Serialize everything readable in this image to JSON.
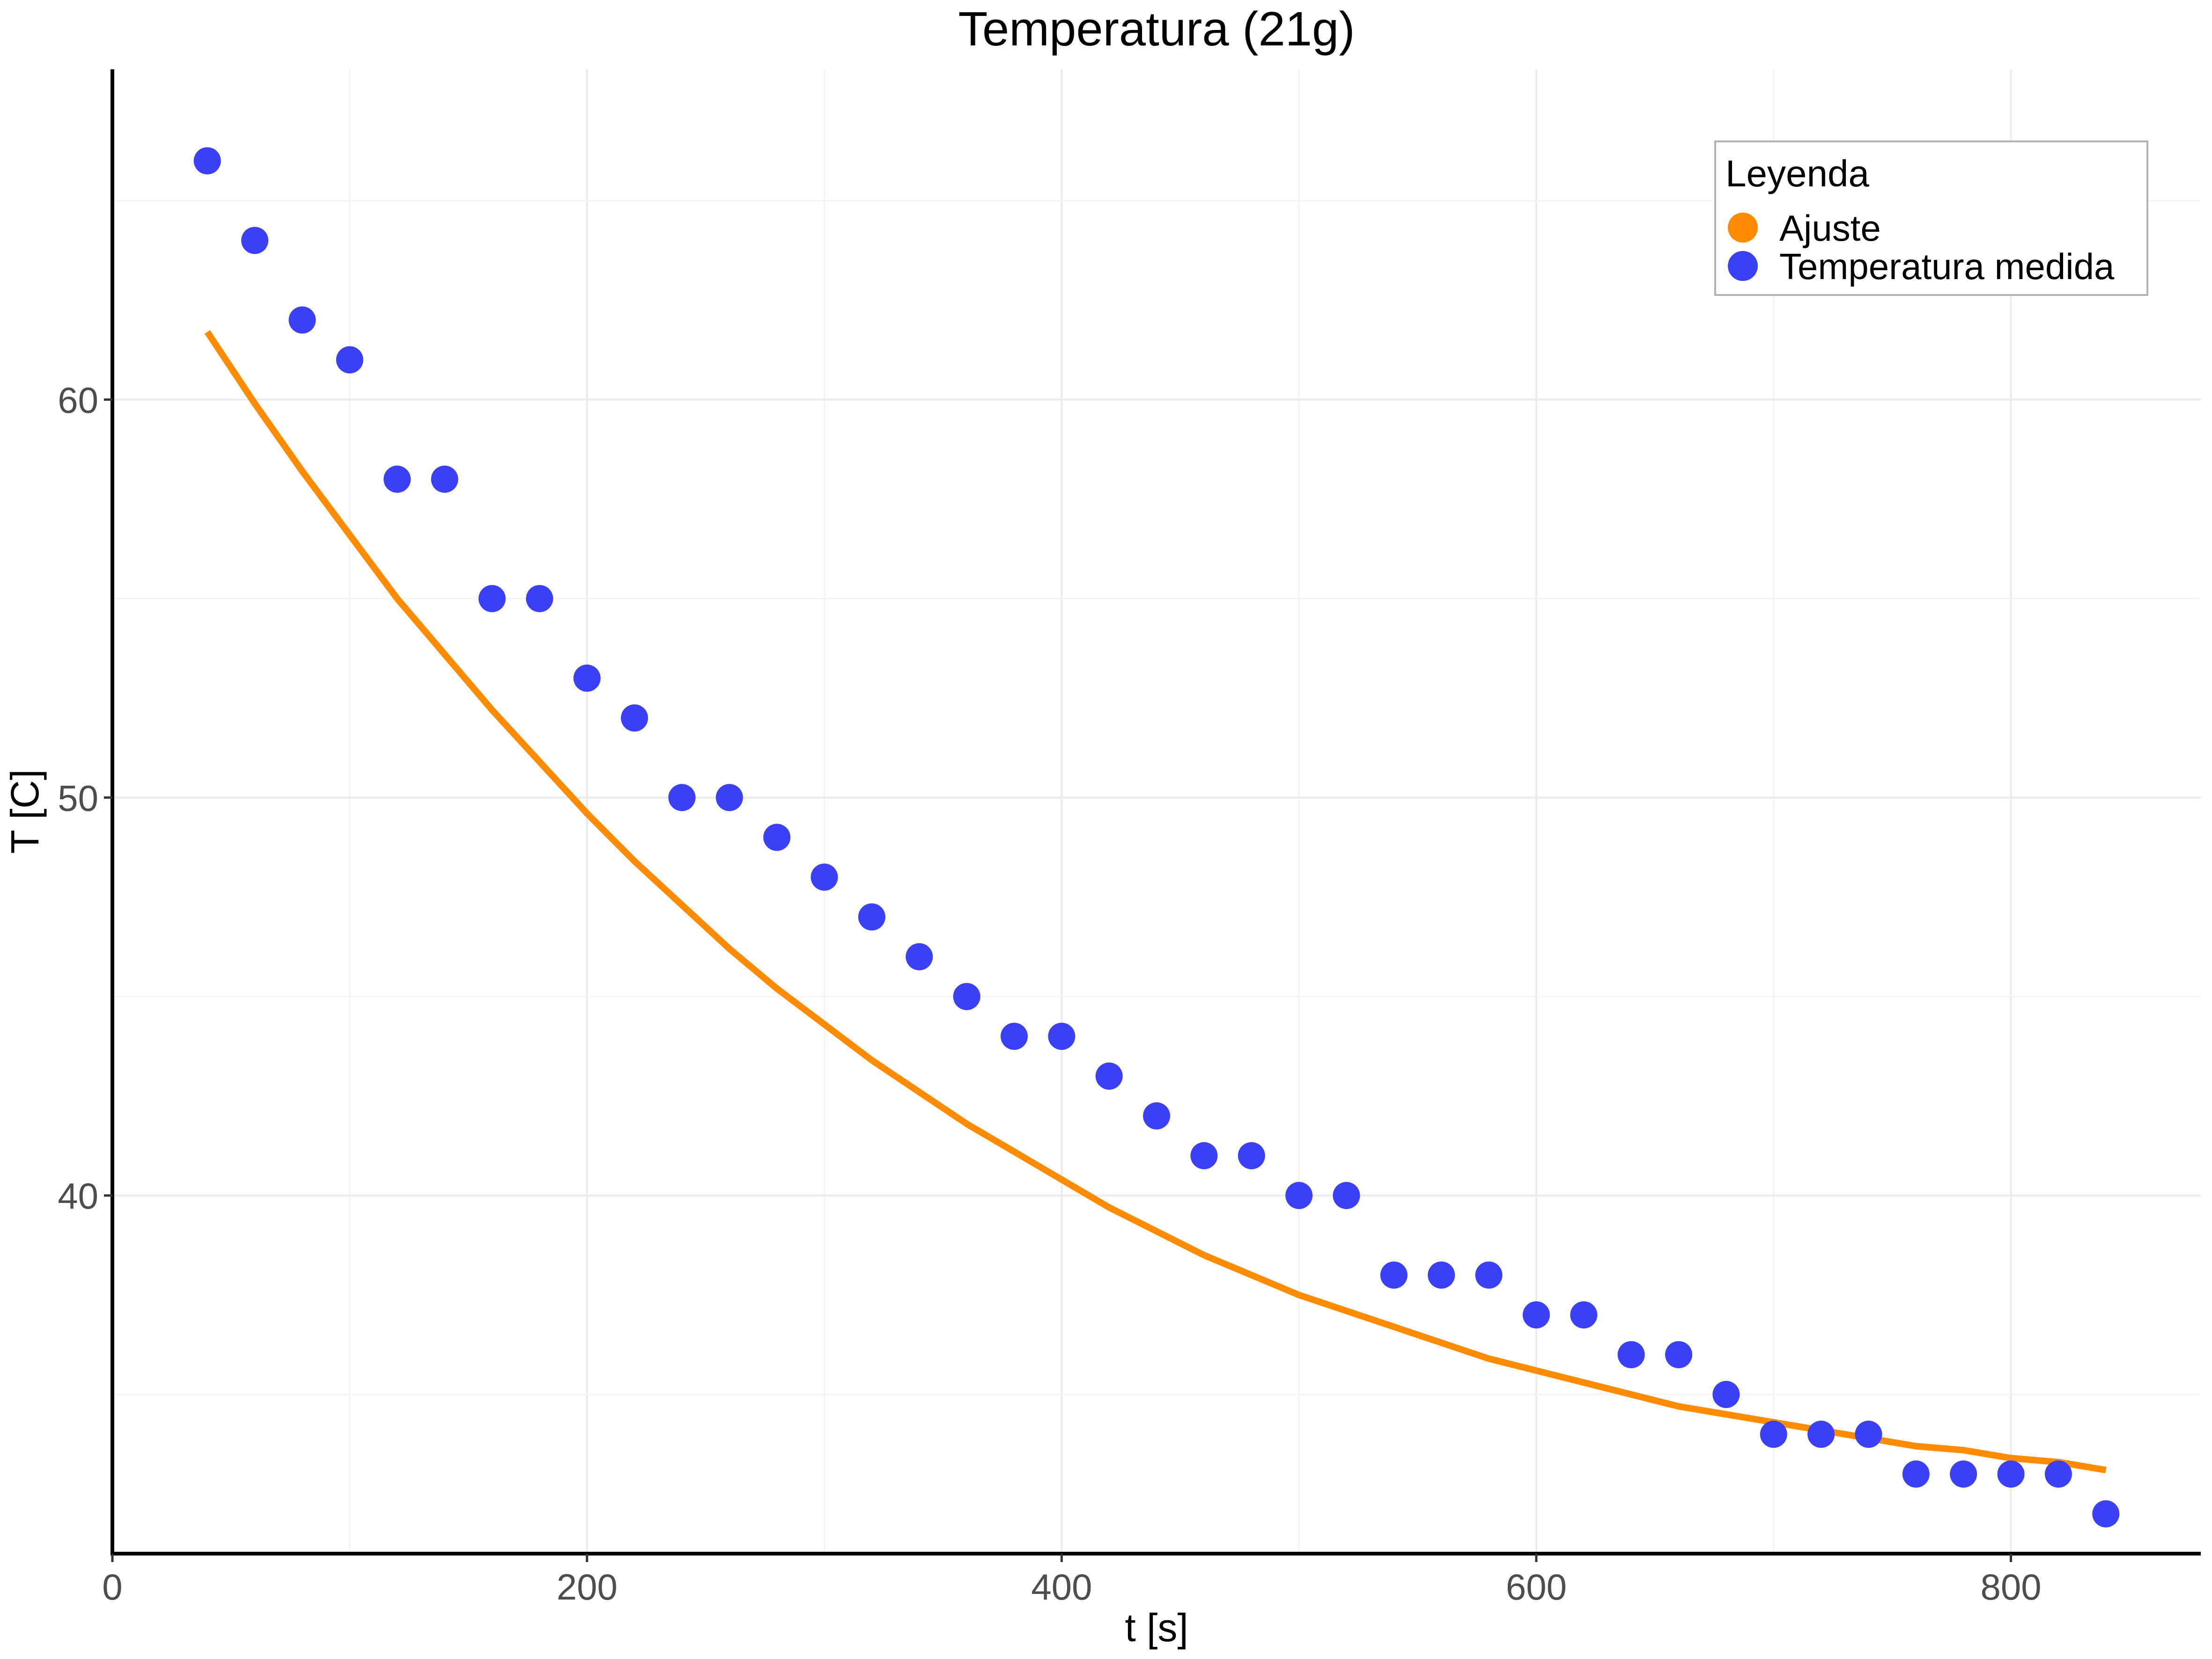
{
  "chart_data": {
    "type": "scatter",
    "title": "Temperatura (21g)",
    "xlabel": "t [s]",
    "ylabel": "T [C]",
    "xlim": [
      0,
      880
    ],
    "ylim": [
      31,
      68.3
    ],
    "x_ticks": [
      0,
      200,
      400,
      600,
      800
    ],
    "y_ticks": [
      40,
      50,
      60
    ],
    "grid": true,
    "legend": {
      "title": "Leyenda",
      "position": "top-right",
      "entries": [
        {
          "label": "Ajuste",
          "color": "#ff8c00"
        },
        {
          "label": "Temperatura medida",
          "color": "#3b40f5"
        }
      ]
    },
    "series": [
      {
        "name": "Temperatura medida",
        "kind": "points",
        "color": "#3b40f5",
        "points": [
          [
            40,
            66
          ],
          [
            60,
            64
          ],
          [
            80,
            62
          ],
          [
            100,
            61
          ],
          [
            120,
            58
          ],
          [
            140,
            58
          ],
          [
            160,
            55
          ],
          [
            180,
            55
          ],
          [
            200,
            53
          ],
          [
            220,
            52
          ],
          [
            240,
            50
          ],
          [
            260,
            50
          ],
          [
            280,
            49
          ],
          [
            300,
            48
          ],
          [
            320,
            47
          ],
          [
            340,
            46
          ],
          [
            360,
            45
          ],
          [
            380,
            44
          ],
          [
            400,
            44
          ],
          [
            420,
            43
          ],
          [
            440,
            42
          ],
          [
            460,
            41
          ],
          [
            480,
            41
          ],
          [
            500,
            40
          ],
          [
            520,
            40
          ],
          [
            540,
            38
          ],
          [
            560,
            38
          ],
          [
            580,
            38
          ],
          [
            600,
            37
          ],
          [
            620,
            37
          ],
          [
            640,
            36
          ],
          [
            660,
            36
          ],
          [
            680,
            35
          ],
          [
            700,
            34
          ],
          [
            720,
            34
          ],
          [
            740,
            34
          ],
          [
            760,
            33
          ],
          [
            780,
            33
          ],
          [
            800,
            33
          ],
          [
            820,
            33
          ],
          [
            840,
            32
          ]
        ]
      },
      {
        "name": "Ajuste",
        "kind": "line",
        "color": "#ff8c00",
        "points": [
          [
            40,
            61.7
          ],
          [
            60,
            59.9
          ],
          [
            80,
            58.2
          ],
          [
            100,
            56.6
          ],
          [
            120,
            55.0
          ],
          [
            140,
            53.6
          ],
          [
            160,
            52.2
          ],
          [
            180,
            50.9
          ],
          [
            200,
            49.6
          ],
          [
            220,
            48.4
          ],
          [
            240,
            47.3
          ],
          [
            260,
            46.2
          ],
          [
            280,
            45.2
          ],
          [
            300,
            44.3
          ],
          [
            320,
            43.4
          ],
          [
            340,
            42.6
          ],
          [
            360,
            41.8
          ],
          [
            380,
            41.1
          ],
          [
            400,
            40.4
          ],
          [
            420,
            39.7
          ],
          [
            440,
            39.1
          ],
          [
            460,
            38.5
          ],
          [
            480,
            38.0
          ],
          [
            500,
            37.5
          ],
          [
            520,
            37.1
          ],
          [
            540,
            36.7
          ],
          [
            560,
            36.3
          ],
          [
            580,
            35.9
          ],
          [
            600,
            35.6
          ],
          [
            620,
            35.3
          ],
          [
            640,
            35.0
          ],
          [
            660,
            34.7
          ],
          [
            680,
            34.5
          ],
          [
            700,
            34.3
          ],
          [
            720,
            34.1
          ],
          [
            740,
            33.9
          ],
          [
            760,
            33.7
          ],
          [
            780,
            33.6
          ],
          [
            800,
            33.4
          ],
          [
            820,
            33.3
          ],
          [
            840,
            33.1
          ]
        ]
      }
    ]
  }
}
